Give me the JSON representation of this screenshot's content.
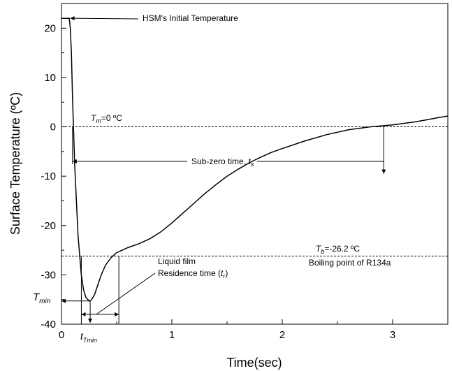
{
  "chart_data": {
    "type": "line",
    "xlabel": "Time(sec)",
    "ylabel": "Surface Temperature (ºC)",
    "xlim": [
      0,
      3.5
    ],
    "ylim": [
      -40,
      25
    ],
    "grid": false,
    "x_ticks": [
      "0",
      "1",
      "2",
      "3"
    ],
    "y_ticks": [
      "20",
      "10",
      "0",
      "-10",
      "-20",
      "-30",
      "-40"
    ],
    "series": [
      {
        "x": [
          0.0,
          0.05,
          0.07,
          0.08,
          0.09,
          0.1,
          0.12,
          0.15,
          0.18,
          0.2,
          0.22,
          0.25,
          0.27,
          0.3,
          0.33,
          0.36,
          0.4,
          0.45,
          0.5,
          0.55,
          0.6,
          0.7,
          0.8,
          0.9,
          1.0,
          1.1,
          1.2,
          1.3,
          1.4,
          1.5,
          1.6,
          1.7,
          1.8,
          1.9,
          2.0,
          2.2,
          2.4,
          2.6,
          2.8,
          2.9,
          3.0,
          3.1,
          3.2,
          3.3,
          3.4,
          3.5
        ],
        "y": [
          22,
          22,
          22,
          20,
          15,
          6,
          -8,
          -22,
          -30,
          -33,
          -34.5,
          -35.3,
          -35.1,
          -34,
          -32,
          -30,
          -28,
          -26.5,
          -25.5,
          -25,
          -24.5,
          -23.7,
          -22.7,
          -21.3,
          -19.5,
          -17.5,
          -15.5,
          -13.5,
          -11.7,
          -10,
          -8.6,
          -7.3,
          -6.2,
          -5.2,
          -4.4,
          -2.9,
          -1.6,
          -0.6,
          0.0,
          0.2,
          0.4,
          0.7,
          1.0,
          1.4,
          1.8,
          2.2
        ]
      }
    ],
    "reference_lines": [
      {
        "y": 0,
        "style": "dashed",
        "label_parts": [
          "T",
          "m",
          "=0 ºC"
        ]
      },
      {
        "y": -26.2,
        "style": "dashed",
        "label_parts": [
          "T",
          "b",
          "=-26.2 ºC"
        ],
        "label2": "Boiling point of R134a"
      }
    ],
    "annotations": {
      "initial_temp": "HSM's Initial Temperature",
      "subzero_parts": [
        "Sub-zero time, ",
        "t",
        "s"
      ],
      "liquid_film": "Liquid film",
      "residence_parts": [
        "Residence time (",
        "t",
        "r",
        ")"
      ],
      "tmin_parts": [
        "T",
        "min"
      ],
      "t_tmin_parts": [
        "t",
        "Tmin"
      ]
    }
  }
}
